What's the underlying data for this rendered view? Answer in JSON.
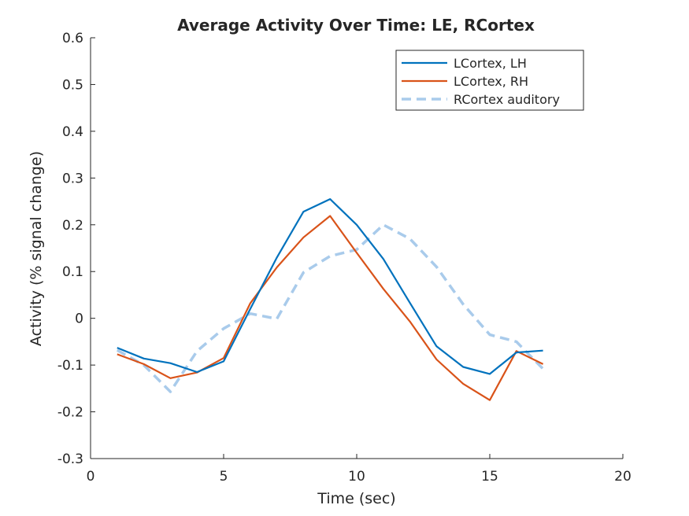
{
  "chart_data": {
    "type": "line",
    "title": "Average Activity Over Time: LE, RCortex",
    "xlabel": "Time (sec)",
    "ylabel": "Activity (% signal change)",
    "xlim": [
      0,
      20
    ],
    "ylim": [
      -0.3,
      0.6
    ],
    "xticks": [
      0,
      5,
      10,
      15,
      20
    ],
    "xtick_labels": [
      "0",
      "5",
      "10",
      "15",
      "20"
    ],
    "yticks": [
      -0.3,
      -0.2,
      -0.1,
      0,
      0.1,
      0.2,
      0.3,
      0.4,
      0.5,
      0.6
    ],
    "ytick_labels": [
      "-0.3",
      "-0.2",
      "-0.1",
      "0",
      "0.1",
      "0.2",
      "0.3",
      "0.4",
      "0.5",
      "0.6"
    ],
    "grid": false,
    "legend_position": "top-right",
    "x": [
      1,
      2,
      3,
      4,
      5,
      6,
      7,
      8,
      9,
      10,
      11,
      12,
      13,
      14,
      15,
      16,
      17
    ],
    "series": [
      {
        "name": "LCortex, LH",
        "color": "#0072BD",
        "style": "solid",
        "values": [
          -0.063,
          -0.086,
          -0.096,
          -0.115,
          -0.092,
          0.02,
          0.13,
          0.228,
          0.255,
          0.2,
          0.127,
          0.033,
          -0.06,
          -0.104,
          -0.119,
          -0.073,
          -0.069
        ]
      },
      {
        "name": "LCortex, RH",
        "color": "#D95319",
        "style": "solid",
        "values": [
          -0.077,
          -0.098,
          -0.128,
          -0.116,
          -0.085,
          0.032,
          0.109,
          0.173,
          0.219,
          0.14,
          0.063,
          -0.007,
          -0.088,
          -0.14,
          -0.175,
          -0.07,
          -0.098
        ]
      },
      {
        "name": "RCortex auditory",
        "color": "#A9CBEB",
        "style": "dashed",
        "values": [
          -0.068,
          -0.1,
          -0.157,
          -0.07,
          -0.022,
          0.01,
          -0.001,
          0.098,
          0.133,
          0.147,
          0.2,
          0.17,
          0.11,
          0.03,
          -0.035,
          -0.05,
          -0.108
        ]
      }
    ]
  }
}
